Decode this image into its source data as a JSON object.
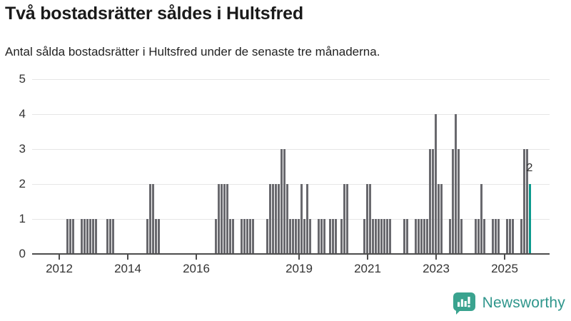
{
  "header": {
    "title": "Två bostadsrätter såldes i Hultsfred",
    "subtitle": "Antal sålda bostadsrätter i Hultsfred under de senaste tre månaderna."
  },
  "chart_data": {
    "type": "bar",
    "title": "Två bostadsrätter såldes i Hultsfred",
    "subtitle": "Antal sålda bostadsrätter i Hultsfred under de senaste tre månaderna.",
    "ylabel": "",
    "xlabel": "",
    "ylim": [
      0,
      5
    ],
    "yticks": [
      0,
      1,
      2,
      3,
      4,
      5
    ],
    "xtick_years": [
      2012,
      2014,
      2016,
      2019,
      2021,
      2023,
      2025
    ],
    "xtick_labels": [
      "2012",
      "2014",
      "2016",
      "2019",
      "2021",
      "2023",
      "2025"
    ],
    "grid": "horizontal",
    "legend": false,
    "bar_unit": "month",
    "series": [
      {
        "d": "2012-03",
        "v": 1
      },
      {
        "d": "2012-04",
        "v": 1
      },
      {
        "d": "2012-05",
        "v": 1
      },
      {
        "d": "2012-08",
        "v": 1
      },
      {
        "d": "2012-09",
        "v": 1
      },
      {
        "d": "2012-10",
        "v": 1
      },
      {
        "d": "2012-11",
        "v": 1
      },
      {
        "d": "2012-12",
        "v": 1
      },
      {
        "d": "2013-01",
        "v": 1
      },
      {
        "d": "2013-05",
        "v": 1
      },
      {
        "d": "2013-06",
        "v": 1
      },
      {
        "d": "2013-07",
        "v": 1
      },
      {
        "d": "2014-07",
        "v": 1
      },
      {
        "d": "2014-08",
        "v": 2
      },
      {
        "d": "2014-09",
        "v": 2
      },
      {
        "d": "2014-10",
        "v": 1
      },
      {
        "d": "2014-11",
        "v": 1
      },
      {
        "d": "2016-07",
        "v": 1
      },
      {
        "d": "2016-08",
        "v": 2
      },
      {
        "d": "2016-09",
        "v": 2
      },
      {
        "d": "2016-10",
        "v": 2
      },
      {
        "d": "2016-11",
        "v": 2
      },
      {
        "d": "2016-12",
        "v": 1
      },
      {
        "d": "2017-01",
        "v": 1
      },
      {
        "d": "2017-04",
        "v": 1
      },
      {
        "d": "2017-05",
        "v": 1
      },
      {
        "d": "2017-06",
        "v": 1
      },
      {
        "d": "2017-07",
        "v": 1
      },
      {
        "d": "2017-08",
        "v": 1
      },
      {
        "d": "2018-01",
        "v": 1
      },
      {
        "d": "2018-02",
        "v": 2
      },
      {
        "d": "2018-03",
        "v": 2
      },
      {
        "d": "2018-04",
        "v": 2
      },
      {
        "d": "2018-05",
        "v": 2
      },
      {
        "d": "2018-06",
        "v": 3
      },
      {
        "d": "2018-07",
        "v": 3
      },
      {
        "d": "2018-08",
        "v": 2
      },
      {
        "d": "2018-09",
        "v": 1
      },
      {
        "d": "2018-10",
        "v": 1
      },
      {
        "d": "2018-11",
        "v": 1
      },
      {
        "d": "2018-12",
        "v": 1
      },
      {
        "d": "2019-01",
        "v": 2
      },
      {
        "d": "2019-02",
        "v": 1
      },
      {
        "d": "2019-03",
        "v": 2
      },
      {
        "d": "2019-04",
        "v": 1
      },
      {
        "d": "2019-07",
        "v": 1
      },
      {
        "d": "2019-08",
        "v": 1
      },
      {
        "d": "2019-09",
        "v": 1
      },
      {
        "d": "2019-11",
        "v": 1
      },
      {
        "d": "2019-12",
        "v": 1
      },
      {
        "d": "2020-01",
        "v": 1
      },
      {
        "d": "2020-03",
        "v": 1
      },
      {
        "d": "2020-04",
        "v": 2
      },
      {
        "d": "2020-05",
        "v": 2
      },
      {
        "d": "2020-11",
        "v": 1
      },
      {
        "d": "2020-12",
        "v": 2
      },
      {
        "d": "2021-01",
        "v": 2
      },
      {
        "d": "2021-02",
        "v": 1
      },
      {
        "d": "2021-03",
        "v": 1
      },
      {
        "d": "2021-04",
        "v": 1
      },
      {
        "d": "2021-05",
        "v": 1
      },
      {
        "d": "2021-06",
        "v": 1
      },
      {
        "d": "2021-07",
        "v": 1
      },
      {
        "d": "2021-08",
        "v": 1
      },
      {
        "d": "2022-01",
        "v": 1
      },
      {
        "d": "2022-02",
        "v": 1
      },
      {
        "d": "2022-05",
        "v": 1
      },
      {
        "d": "2022-06",
        "v": 1
      },
      {
        "d": "2022-07",
        "v": 1
      },
      {
        "d": "2022-08",
        "v": 1
      },
      {
        "d": "2022-09",
        "v": 1
      },
      {
        "d": "2022-10",
        "v": 3
      },
      {
        "d": "2022-11",
        "v": 3
      },
      {
        "d": "2022-12",
        "v": 4
      },
      {
        "d": "2023-01",
        "v": 2
      },
      {
        "d": "2023-02",
        "v": 2
      },
      {
        "d": "2023-05",
        "v": 1
      },
      {
        "d": "2023-06",
        "v": 3
      },
      {
        "d": "2023-07",
        "v": 4
      },
      {
        "d": "2023-08",
        "v": 3
      },
      {
        "d": "2023-09",
        "v": 1
      },
      {
        "d": "2024-02",
        "v": 1
      },
      {
        "d": "2024-03",
        "v": 1
      },
      {
        "d": "2024-04",
        "v": 2
      },
      {
        "d": "2024-05",
        "v": 1
      },
      {
        "d": "2024-08",
        "v": 1
      },
      {
        "d": "2024-09",
        "v": 1
      },
      {
        "d": "2024-10",
        "v": 1
      },
      {
        "d": "2025-01",
        "v": 1
      },
      {
        "d": "2025-02",
        "v": 1
      },
      {
        "d": "2025-03",
        "v": 1
      },
      {
        "d": "2025-06",
        "v": 1
      },
      {
        "d": "2025-07",
        "v": 3
      },
      {
        "d": "2025-08",
        "v": 3
      },
      {
        "d": "2025-09",
        "v": 2
      }
    ],
    "highlight": {
      "d": "2025-09",
      "v": 2,
      "label": "2"
    },
    "colors": {
      "bar": "#69696e",
      "highlight": "#0a9a8d",
      "grid": "#e6e6e6",
      "axis": "#4d4d4d",
      "tick_text": "#333333"
    }
  },
  "annotation": {
    "last_value_label": "2"
  },
  "branding": {
    "logo_text": "Newsworthy",
    "logo_icon": "newsworthy-speech-bubble-chart-icon",
    "text_color": "#2f968c",
    "icon_color": "#3aa38f"
  }
}
